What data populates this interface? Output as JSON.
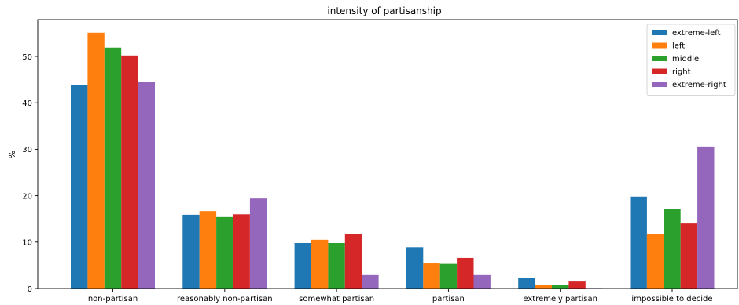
{
  "chart_data": {
    "type": "bar",
    "title": "intensity of partisanship",
    "xlabel": "",
    "ylabel": "%",
    "ylim": [
      0,
      58
    ],
    "yticks": [
      0,
      10,
      20,
      30,
      40,
      50
    ],
    "grid": false,
    "legend_position": "top-right",
    "categories": [
      "non-partisan",
      "reasonably non-partisan",
      "somewhat partisan",
      "partisan",
      "extremely partisan",
      "impossible to decide"
    ],
    "series": [
      {
        "name": "extreme-left",
        "color": "#1f77b4",
        "values": [
          43.8,
          15.9,
          9.8,
          8.9,
          2.2,
          19.8
        ]
      },
      {
        "name": "left",
        "color": "#ff7f0e",
        "values": [
          55.1,
          16.7,
          10.5,
          5.4,
          0.8,
          11.8
        ]
      },
      {
        "name": "middle",
        "color": "#2ca02c",
        "values": [
          51.9,
          15.4,
          9.8,
          5.3,
          0.8,
          17.1
        ]
      },
      {
        "name": "right",
        "color": "#d62728",
        "values": [
          50.2,
          16.0,
          11.8,
          6.6,
          1.5,
          14.0
        ]
      },
      {
        "name": "extreme-right",
        "color": "#9467bd",
        "values": [
          44.5,
          19.4,
          2.9,
          2.9,
          0.1,
          30.6
        ]
      }
    ]
  }
}
